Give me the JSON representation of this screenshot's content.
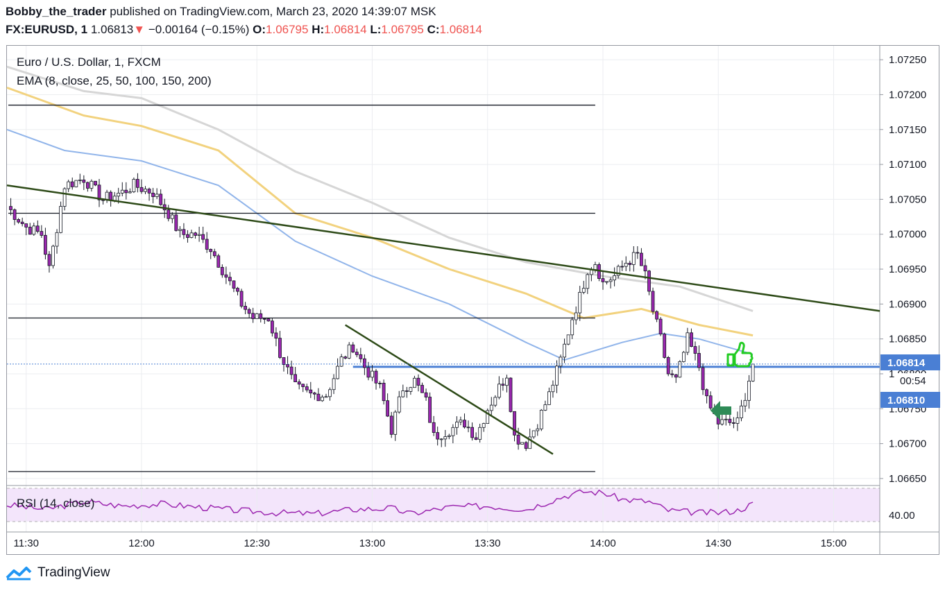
{
  "header": {
    "author": "Bobby_the_trader",
    "published_text": "published on TradingView.com, March 23, 2020 14:39:07 MSK",
    "symbol": "FX:EURUSD, 1",
    "last_price": "1.06813",
    "change_arrow": "▼",
    "change": "−0.00164 (−0.15%)",
    "o_label": "O:",
    "o_value": "1.06795",
    "h_label": "H:",
    "h_value": "1.06814",
    "l_label": "L:",
    "l_value": "1.06795",
    "c_label": "C:",
    "c_value": "1.06814"
  },
  "legend": {
    "title": "Euro / U.S. Dollar, 1, FXCM",
    "ema": "EMA (8, close, 25, 50, 100, 150, 200)",
    "rsi": "RSI (14, close)"
  },
  "price_axis": {
    "ticks": [
      "1.07250",
      "1.07200",
      "1.07150",
      "1.07100",
      "1.07050",
      "1.07000",
      "1.06950",
      "1.06900",
      "1.06850",
      "1.06800",
      "1.06750",
      "1.06700",
      "1.06650"
    ],
    "current_price_tag": "1.06814",
    "countdown_tag": "00:54",
    "line_tag": "1.06810"
  },
  "rsi_axis": {
    "tick": "40.00"
  },
  "time_axis": {
    "ticks": [
      "11:30",
      "12:00",
      "12:30",
      "13:00",
      "13:30",
      "14:00",
      "14:30",
      "15:00"
    ]
  },
  "footer": {
    "brand": "TradingView"
  },
  "colors": {
    "up": "#ffffff",
    "down": "#9c27b0",
    "wick": "#131722",
    "ema_blue": "#90b4ea",
    "ema_yellow": "#f2d27e",
    "ema_gray": "#d6d6d6",
    "trendline": "#2d4a17",
    "hline": "#131722",
    "blue_line": "#4a7fd4",
    "price_tag_bg": "#4a7fd4",
    "rsi_line": "#9c27b0",
    "rsi_band": "#f3e5fb",
    "thumb_icon": "#22cc22",
    "arrow_icon": "#2e8b57"
  },
  "icons": {
    "annotation_1": "thumbs-up-icon",
    "annotation_2": "left-arrow-icon",
    "logo": "tradingview-logo-icon"
  },
  "chart_data": {
    "type": "candlestick",
    "title": "Euro / U.S. Dollar, 1, FXCM",
    "timeframe_minutes": 1,
    "ylim": [
      1.0664,
      1.0727
    ],
    "x_range": [
      "11:25",
      "15:12"
    ],
    "grid": true,
    "last_price": 1.06814,
    "horizontal_lines": [
      1.07185,
      1.0703,
      1.0688,
      1.0666,
      1.0681
    ],
    "trendlines": [
      {
        "from": [
          "11:25",
          1.0707
        ],
        "to": [
          "15:12",
          1.0689
        ]
      },
      {
        "from": [
          "12:53",
          1.0687
        ],
        "to": [
          "13:47",
          1.06685
        ]
      }
    ],
    "ema_series": [
      {
        "color": "blue",
        "points": [
          [
            "11:25",
            1.0715
          ],
          [
            "11:40",
            1.0712
          ],
          [
            "12:00",
            1.07105
          ],
          [
            "12:20",
            1.0707
          ],
          [
            "12:40",
            1.0699
          ],
          [
            "13:00",
            1.0694
          ],
          [
            "13:20",
            1.069
          ],
          [
            "13:40",
            1.06845
          ],
          [
            "13:50",
            1.0682
          ],
          [
            "14:05",
            1.06845
          ],
          [
            "14:15",
            1.06858
          ],
          [
            "14:25",
            1.0685
          ],
          [
            "14:39",
            1.06828
          ]
        ]
      },
      {
        "color": "yellow",
        "points": [
          [
            "11:25",
            1.0721
          ],
          [
            "11:45",
            1.0717
          ],
          [
            "12:00",
            1.07155
          ],
          [
            "12:20",
            1.0712
          ],
          [
            "12:40",
            1.0703
          ],
          [
            "13:00",
            1.06995
          ],
          [
            "13:20",
            1.0695
          ],
          [
            "13:40",
            1.06915
          ],
          [
            "13:55",
            1.0688
          ],
          [
            "14:10",
            1.06893
          ],
          [
            "14:25",
            1.0687
          ],
          [
            "14:39",
            1.06855
          ]
        ]
      },
      {
        "color": "gray",
        "points": [
          [
            "11:25",
            1.0724
          ],
          [
            "11:45",
            1.07205
          ],
          [
            "12:00",
            1.07195
          ],
          [
            "12:20",
            1.0715
          ],
          [
            "12:40",
            1.0709
          ],
          [
            "13:00",
            1.07045
          ],
          [
            "13:20",
            1.06995
          ],
          [
            "13:40",
            1.0696
          ],
          [
            "14:00",
            1.0694
          ],
          [
            "14:20",
            1.06925
          ],
          [
            "14:39",
            1.0689
          ]
        ]
      }
    ],
    "anchors": [
      [
        "11:25",
        1.0704
      ],
      [
        "11:30",
        1.0701
      ],
      [
        "11:34",
        1.07
      ],
      [
        "11:36",
        1.0695
      ],
      [
        "11:40",
        1.0707
      ],
      [
        "11:45",
        1.0708
      ],
      [
        "11:50",
        1.0705
      ],
      [
        "11:55",
        1.0706
      ],
      [
        "11:58",
        1.0707
      ],
      [
        "12:03",
        1.0706
      ],
      [
        "12:07",
        1.0703
      ],
      [
        "12:10",
        1.07
      ],
      [
        "12:14",
        1.07
      ],
      [
        "12:18",
        1.0698
      ],
      [
        "12:22",
        1.0694
      ],
      [
        "12:26",
        1.069
      ],
      [
        "12:29",
        1.0688
      ],
      [
        "12:33",
        1.0688
      ],
      [
        "12:36",
        1.0683
      ],
      [
        "12:40",
        1.0678
      ],
      [
        "12:44",
        1.0677
      ],
      [
        "12:48",
        1.0677
      ],
      [
        "12:52",
        1.0682
      ],
      [
        "12:55",
        1.0684
      ],
      [
        "12:58",
        1.0681
      ],
      [
        "13:02",
        1.0678
      ],
      [
        "13:05",
        1.0672
      ],
      [
        "13:08",
        1.0678
      ],
      [
        "13:11",
        1.0679
      ],
      [
        "13:14",
        1.0676
      ],
      [
        "13:16",
        1.0671
      ],
      [
        "13:20",
        1.0672
      ],
      [
        "13:24",
        1.0673
      ],
      [
        "13:27",
        1.0671
      ],
      [
        "13:30",
        1.0675
      ],
      [
        "13:33",
        1.0678
      ],
      [
        "13:35",
        1.068
      ],
      [
        "13:37",
        1.0671
      ],
      [
        "13:40",
        1.067
      ],
      [
        "13:43",
        1.0673
      ],
      [
        "13:46",
        1.0677
      ],
      [
        "13:49",
        1.0682
      ],
      [
        "13:52",
        1.0688
      ],
      [
        "13:54",
        1.0691
      ],
      [
        "13:56",
        1.0695
      ],
      [
        "13:58",
        1.0696
      ],
      [
        "14:00",
        1.0693
      ],
      [
        "14:03",
        1.0694
      ],
      [
        "14:06",
        1.0696
      ],
      [
        "14:09",
        1.0697
      ],
      [
        "14:11",
        1.0694
      ],
      [
        "14:13",
        1.0689
      ],
      [
        "14:15",
        1.0685
      ],
      [
        "14:17",
        1.068
      ],
      [
        "14:19",
        1.0679
      ],
      [
        "14:22",
        1.0685
      ],
      [
        "14:25",
        1.0681
      ],
      [
        "14:27",
        1.0676
      ],
      [
        "14:30",
        1.0673
      ],
      [
        "14:33",
        1.0673
      ],
      [
        "14:35",
        1.0673
      ],
      [
        "14:37",
        1.0677
      ],
      [
        "14:39",
        1.06814
      ]
    ],
    "rsi": {
      "label": "RSI (14, close)",
      "tick": 40,
      "points": [
        [
          "11:25",
          45
        ],
        [
          "11:35",
          41
        ],
        [
          "11:45",
          48
        ],
        [
          "11:55",
          44
        ],
        [
          "12:05",
          46
        ],
        [
          "12:15",
          43
        ],
        [
          "12:25",
          40
        ],
        [
          "12:35",
          38
        ],
        [
          "12:45",
          37
        ],
        [
          "12:55",
          41
        ],
        [
          "13:05",
          42
        ],
        [
          "13:10",
          37
        ],
        [
          "13:20",
          43
        ],
        [
          "13:30",
          44
        ],
        [
          "13:40",
          41
        ],
        [
          "13:50",
          53
        ],
        [
          "13:55",
          57
        ],
        [
          "14:00",
          56
        ],
        [
          "14:05",
          50
        ],
        [
          "14:12",
          48
        ],
        [
          "14:17",
          40
        ],
        [
          "14:25",
          38
        ],
        [
          "14:30",
          38
        ],
        [
          "14:35",
          40
        ],
        [
          "14:39",
          46
        ]
      ]
    }
  }
}
